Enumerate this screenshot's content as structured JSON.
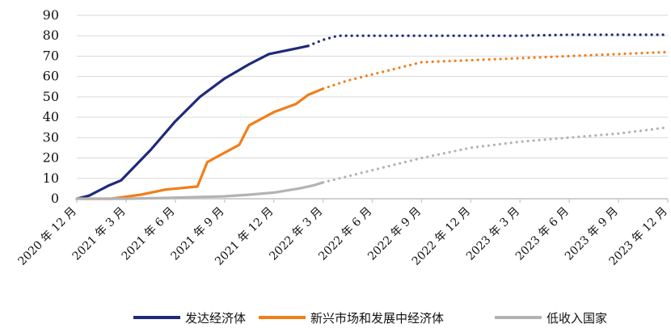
{
  "chart_data": {
    "type": "line",
    "title": "",
    "xlabel": "",
    "ylabel": "",
    "ylim": [
      0,
      90
    ],
    "yticks": [
      "0",
      "10",
      "20",
      "30",
      "40",
      "50",
      "60",
      "70",
      "80",
      "90"
    ],
    "categories": [
      "2020 年 12 月",
      "2021 年 3 月",
      "2021 年 6 月",
      "2021 年 9 月",
      "2021 年 12 月",
      "2022 年 3 月",
      "2022 年 6 月",
      "2022 年 9 月",
      "2022 年 12 月",
      "2023 年 3 月",
      "2023 年 6 月",
      "2023 年 9 月",
      "2023 年 12 月"
    ],
    "grid": true,
    "legend_position": "bottom",
    "series": [
      {
        "name": "发达经济体",
        "color": "#1f2a7a",
        "actual": [
          [
            0,
            0
          ],
          [
            0.25,
            1.5
          ],
          [
            0.65,
            6.5
          ],
          [
            0.9,
            9
          ],
          [
            1.5,
            24
          ],
          [
            2.0,
            38
          ],
          [
            2.5,
            50
          ],
          [
            3.0,
            59
          ],
          [
            3.5,
            66
          ],
          [
            3.9,
            71
          ],
          [
            4.5,
            74
          ],
          [
            4.7,
            75
          ]
        ],
        "projected": [
          [
            4.7,
            75
          ],
          [
            5.0,
            78
          ],
          [
            5.3,
            80
          ],
          [
            6.0,
            80
          ],
          [
            7.0,
            80
          ],
          [
            8.0,
            80
          ],
          [
            9.0,
            80
          ],
          [
            10.0,
            80.5
          ],
          [
            11.0,
            80.5
          ],
          [
            12.0,
            80.5
          ]
        ]
      },
      {
        "name": "新兴市场和发展中经济体",
        "color": "#f07f1a",
        "actual": [
          [
            0,
            0
          ],
          [
            0.7,
            0
          ],
          [
            1.3,
            2
          ],
          [
            1.8,
            4.5
          ],
          [
            2.45,
            6
          ],
          [
            2.65,
            18
          ],
          [
            3.3,
            26.5
          ],
          [
            3.5,
            36
          ],
          [
            4.0,
            42.5
          ],
          [
            4.45,
            46.5
          ],
          [
            4.7,
            51
          ],
          [
            5.0,
            54
          ]
        ],
        "projected": [
          [
            5.0,
            54
          ],
          [
            5.5,
            58
          ],
          [
            6.0,
            61
          ],
          [
            6.5,
            64
          ],
          [
            7.0,
            67
          ],
          [
            8.0,
            68
          ],
          [
            9.0,
            69
          ],
          [
            10.0,
            70
          ],
          [
            11.0,
            71
          ],
          [
            12.0,
            72
          ]
        ]
      },
      {
        "name": "低收入国家",
        "color": "#b3b3b3",
        "actual": [
          [
            0,
            0
          ],
          [
            1.0,
            0
          ],
          [
            2.0,
            0.5
          ],
          [
            3.0,
            1.2
          ],
          [
            3.5,
            2
          ],
          [
            4.0,
            3
          ],
          [
            4.5,
            5
          ],
          [
            4.8,
            6.5
          ],
          [
            5.0,
            8
          ]
        ],
        "projected": [
          [
            5.0,
            8
          ],
          [
            5.5,
            11
          ],
          [
            6.0,
            14
          ],
          [
            7.0,
            20
          ],
          [
            8.0,
            25
          ],
          [
            9.0,
            28
          ],
          [
            10.0,
            30
          ],
          [
            11.0,
            32
          ],
          [
            12.0,
            35
          ]
        ]
      }
    ]
  }
}
